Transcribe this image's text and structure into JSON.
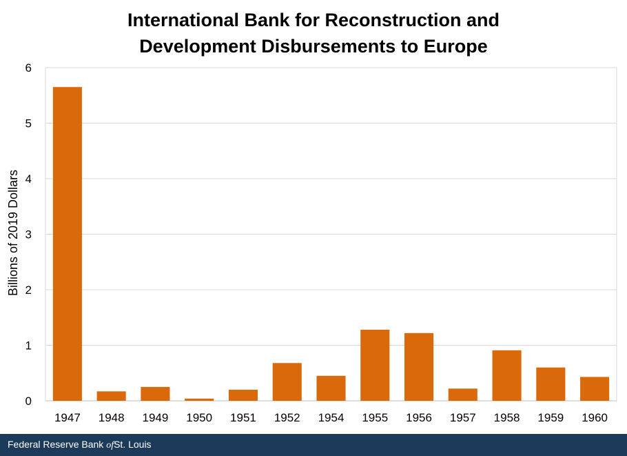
{
  "chart_data": {
    "type": "bar",
    "title_lines": [
      "International Bank for Reconstruction and",
      "Development Disbursements to Europe"
    ],
    "ylabel": "Billions of 2019 Dollars",
    "xlabel": "",
    "ylim": [
      0,
      6
    ],
    "yticks": [
      0,
      1,
      2,
      3,
      4,
      5,
      6
    ],
    "grid": true,
    "bar_color": "#d9690a",
    "categories": [
      "1947",
      "1948",
      "1949",
      "1950",
      "1951",
      "1952",
      "1954",
      "1955",
      "1956",
      "1957",
      "1958",
      "1959",
      "1960"
    ],
    "values": [
      5.65,
      0.17,
      0.25,
      0.04,
      0.2,
      0.68,
      0.45,
      1.28,
      1.22,
      0.22,
      0.91,
      0.6,
      0.43
    ]
  },
  "footer": {
    "org_prefix": "Federal Reserve Bank ",
    "org_of": "of",
    "org_suffix": "St. Louis",
    "background": "#1c3a5a"
  }
}
